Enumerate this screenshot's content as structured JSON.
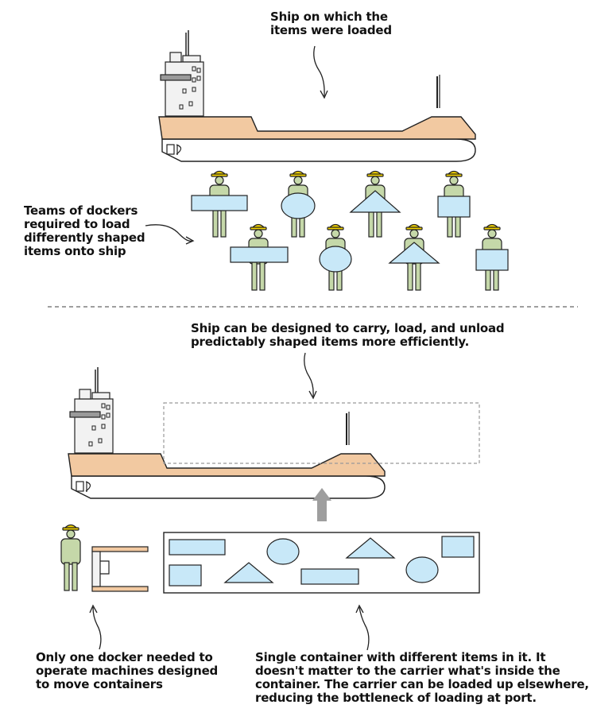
{
  "labels": {
    "ship_top": [
      "Ship on which the",
      "items were loaded"
    ],
    "dockers_teams": [
      "Teams of dockers",
      "required to load",
      "differently shaped",
      "items onto ship"
    ],
    "ship_container": [
      "Ship can be designed to carry, load, and unload",
      "predictably shaped items more efficiently."
    ],
    "one_docker": [
      "Only one docker needed to",
      "operate machines designed",
      "to move containers"
    ],
    "single_container": [
      "Single container with different items in it. It",
      "doesn't matter to the carrier what's inside the",
      "container. The carrier can be loaded up elsewhere,",
      "reducing the bottleneck of loading at port."
    ]
  },
  "colors": {
    "hull_deck": "#f2c9a1",
    "cargo_shape": "#c8e8f8",
    "docker_body": "#c5d8a9",
    "hard_hat": "#f5d400",
    "superstructure": "#f2f2f2",
    "divider": "#666666",
    "arrow_up": "#9e9e9e"
  }
}
